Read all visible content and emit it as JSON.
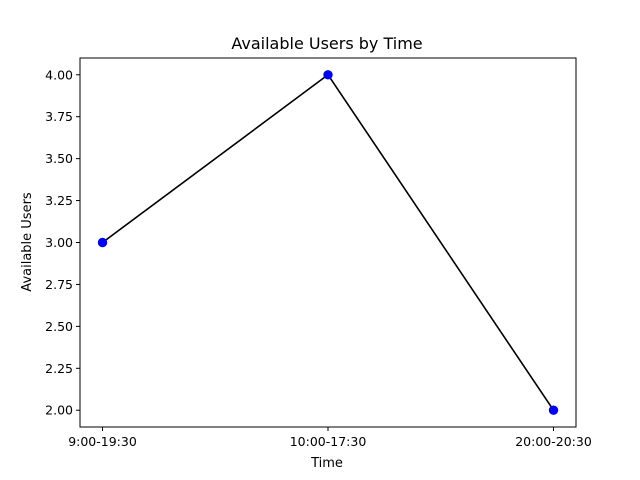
{
  "chart_data": {
    "type": "line",
    "title": "Available Users by Time",
    "xlabel": "Time",
    "ylabel": "Available Users",
    "categories": [
      "9:00-19:30",
      "10:00-17:30",
      "20:00-20:30"
    ],
    "series": [
      {
        "values": [
          3,
          4,
          2
        ],
        "line_color": "#000000",
        "marker_color": "#0000ff"
      }
    ],
    "ylim": [
      1.9,
      4.1
    ],
    "yticks": [
      "2.00",
      "2.25",
      "2.50",
      "2.75",
      "3.00",
      "3.25",
      "3.50",
      "3.75",
      "4.00"
    ],
    "grid": false,
    "legend": "none"
  }
}
